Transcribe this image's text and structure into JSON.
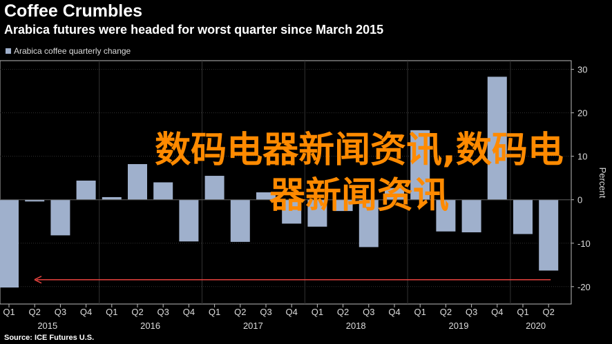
{
  "header": {
    "title": "Coffee Crumbles",
    "subtitle": "Arabica futures were headed for worst quarter since March 2015"
  },
  "legend": {
    "label": "Arabica coffee quarterly change"
  },
  "source": "Source: ICE Futures U.S.",
  "watermark": "数码电器新闻资讯,数码电器新闻资讯",
  "colors": {
    "bar": "#9fb0cc",
    "arrow": "#e8433f",
    "axis": "#bdbdbd",
    "grid": "#333333",
    "watermark": "#ff8a00"
  },
  "chart_data": {
    "type": "bar",
    "ylabel": "Percent",
    "ylim": [
      -24,
      32
    ],
    "yticks": [
      30,
      20,
      10,
      0,
      -10,
      -20
    ],
    "categories": [
      "Q1 2015",
      "Q2 2015",
      "Q3 2015",
      "Q4 2015",
      "Q1 2016",
      "Q2 2016",
      "Q3 2016",
      "Q4 2016",
      "Q1 2017",
      "Q2 2017",
      "Q3 2017",
      "Q4 2017",
      "Q1 2018",
      "Q2 2018",
      "Q3 2018",
      "Q4 2018",
      "Q1 2019",
      "Q2 2019",
      "Q3 2019",
      "Q4 2019",
      "Q1 2020",
      "Q2 2020"
    ],
    "quarter_labels": [
      "Q1",
      "Q2",
      "Q3",
      "Q4",
      "Q1",
      "Q2",
      "Q3",
      "Q4",
      "Q1",
      "Q2",
      "Q3",
      "Q4",
      "Q1",
      "Q2",
      "Q3",
      "Q4",
      "Q1",
      "Q2",
      "Q3",
      "Q4",
      "Q1",
      "Q2"
    ],
    "year_labels": [
      "2015",
      "2016",
      "2017",
      "2018",
      "2019",
      "2020"
    ],
    "values": [
      -20.2,
      -0.4,
      -8.2,
      4.4,
      0.6,
      8.2,
      4.0,
      -9.6,
      5.5,
      -9.7,
      1.7,
      -5.5,
      -6.2,
      -2.6,
      -10.9,
      2.7,
      16.0,
      -7.3,
      -7.5,
      28.3,
      -7.9,
      -16.3
    ],
    "reference_line": {
      "value": -18.4,
      "from": "Q2 2020",
      "to": "Q1 2015",
      "style": "arrow"
    }
  }
}
